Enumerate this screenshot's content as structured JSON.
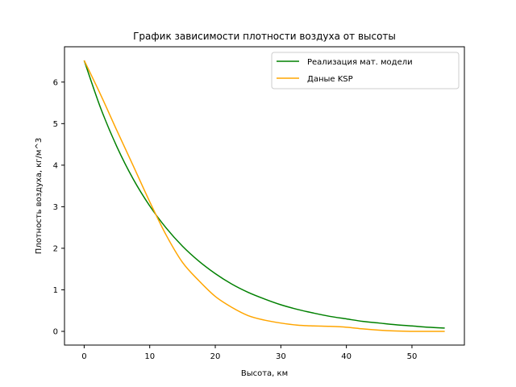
{
  "chart_data": {
    "type": "line",
    "title": "График зависимости плотности воздуха от высоты",
    "xlabel": "Высота, км",
    "ylabel": "Плотность воздуха, кг/м^3",
    "xlim": [
      -3,
      58
    ],
    "ylim": [
      -0.33,
      6.85
    ],
    "xticks": [
      0,
      10,
      20,
      30,
      40,
      50
    ],
    "yticks": [
      0,
      1,
      2,
      3,
      4,
      5,
      6
    ],
    "grid": false,
    "legend_position": "upper right",
    "series": [
      {
        "name": "Реализация мат. модели",
        "color": "#008000",
        "x": [
          0,
          2.5,
          5,
          7.5,
          10,
          12.5,
          15,
          17.5,
          20,
          22.5,
          25,
          27.5,
          30,
          32.5,
          35,
          37.5,
          40,
          42.5,
          45,
          47.5,
          50,
          52.5,
          55
        ],
        "y": [
          6.52,
          5.38,
          4.44,
          3.66,
          3.02,
          2.49,
          2.05,
          1.69,
          1.39,
          1.14,
          0.94,
          0.78,
          0.64,
          0.53,
          0.44,
          0.36,
          0.3,
          0.24,
          0.2,
          0.16,
          0.13,
          0.1,
          0.08
        ]
      },
      {
        "name": "Даные KSP",
        "color": "#ffa500",
        "x": [
          0,
          2.5,
          5,
          7.5,
          10,
          12.5,
          15,
          17.5,
          20,
          22.5,
          25,
          27.5,
          30,
          32.5,
          35,
          37.5,
          40,
          42.5,
          45,
          47.5,
          50,
          52.5,
          55
        ],
        "y": [
          6.52,
          5.7,
          4.83,
          3.98,
          3.12,
          2.32,
          1.66,
          1.22,
          0.84,
          0.58,
          0.38,
          0.27,
          0.2,
          0.15,
          0.13,
          0.12,
          0.1,
          0.06,
          0.03,
          0.01,
          0.0,
          0.0,
          0.0
        ]
      }
    ]
  }
}
